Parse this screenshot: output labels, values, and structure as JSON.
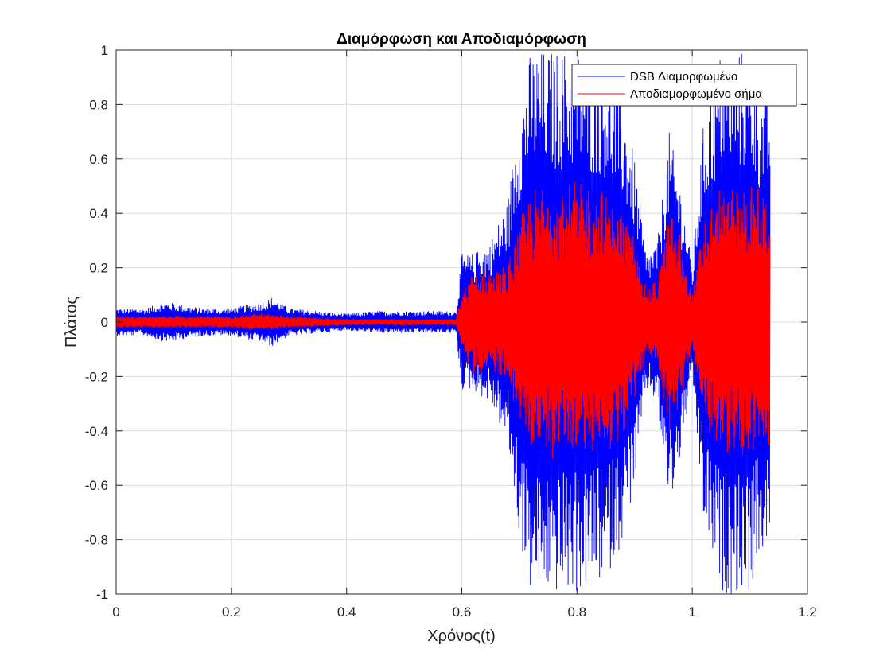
{
  "chart_data": {
    "type": "line",
    "title": "Διαμόρφωση και Αποδιαμόρφωση",
    "xlabel": "Χρόνος(t)",
    "ylabel": "Πλάτος",
    "xlim": [
      0,
      1.2
    ],
    "ylim": [
      -1,
      1
    ],
    "xticks": [
      0,
      0.2,
      0.4,
      0.6,
      0.8,
      1,
      1.2
    ],
    "yticks": [
      -1,
      -0.8,
      -0.6,
      -0.4,
      -0.2,
      0,
      0.2,
      0.4,
      0.6,
      0.8,
      1
    ],
    "xtick_labels": [
      "0",
      "0.2",
      "0.4",
      "0.6",
      "0.8",
      "1",
      "1.2"
    ],
    "ytick_labels": [
      "-1",
      "-0.8",
      "-0.6",
      "-0.4",
      "-0.2",
      "0",
      "0.2",
      "0.4",
      "0.6",
      "0.8",
      "1"
    ],
    "grid": true,
    "legend_position": "top-right",
    "x_end": 1.135,
    "series": [
      {
        "name": "DSB Διαμορφωμένο",
        "color": "#0000ff",
        "envelope": [
          [
            0,
            0.05
          ],
          [
            0.05,
            0.05
          ],
          [
            0.08,
            0.07
          ],
          [
            0.1,
            0.07
          ],
          [
            0.12,
            0.06
          ],
          [
            0.15,
            0.05
          ],
          [
            0.2,
            0.05
          ],
          [
            0.22,
            0.06
          ],
          [
            0.25,
            0.07
          ],
          [
            0.27,
            0.09
          ],
          [
            0.3,
            0.05
          ],
          [
            0.35,
            0.04
          ],
          [
            0.4,
            0.03
          ],
          [
            0.45,
            0.04
          ],
          [
            0.5,
            0.04
          ],
          [
            0.55,
            0.04
          ],
          [
            0.59,
            0.04
          ],
          [
            0.6,
            0.25
          ],
          [
            0.62,
            0.25
          ],
          [
            0.65,
            0.3
          ],
          [
            0.68,
            0.45
          ],
          [
            0.7,
            0.8
          ],
          [
            0.72,
            1.0
          ],
          [
            0.75,
            1.0
          ],
          [
            0.8,
            1.0
          ],
          [
            0.85,
            0.95
          ],
          [
            0.88,
            0.8
          ],
          [
            0.9,
            0.6
          ],
          [
            0.92,
            0.25
          ],
          [
            0.94,
            0.3
          ],
          [
            0.96,
            0.7
          ],
          [
            0.98,
            0.5
          ],
          [
            1.0,
            0.2
          ],
          [
            1.02,
            0.75
          ],
          [
            1.05,
            1.0
          ],
          [
            1.1,
            1.0
          ],
          [
            1.12,
            0.85
          ],
          [
            1.135,
            0.85
          ]
        ]
      },
      {
        "name": "Αποδιαμορφωμένο σήμα",
        "color": "#ff0000",
        "envelope": [
          [
            0,
            0.02
          ],
          [
            0.1,
            0.02
          ],
          [
            0.2,
            0.02
          ],
          [
            0.25,
            0.03
          ],
          [
            0.3,
            0.02
          ],
          [
            0.4,
            0.01
          ],
          [
            0.5,
            0.01
          ],
          [
            0.59,
            0.01
          ],
          [
            0.6,
            0.1
          ],
          [
            0.62,
            0.18
          ],
          [
            0.65,
            0.18
          ],
          [
            0.68,
            0.2
          ],
          [
            0.7,
            0.35
          ],
          [
            0.72,
            0.45
          ],
          [
            0.75,
            0.48
          ],
          [
            0.8,
            0.48
          ],
          [
            0.85,
            0.46
          ],
          [
            0.88,
            0.4
          ],
          [
            0.9,
            0.3
          ],
          [
            0.92,
            0.12
          ],
          [
            0.94,
            0.15
          ],
          [
            0.96,
            0.4
          ],
          [
            0.98,
            0.3
          ],
          [
            1.0,
            0.1
          ],
          [
            1.02,
            0.35
          ],
          [
            1.05,
            0.48
          ],
          [
            1.1,
            0.48
          ],
          [
            1.12,
            0.45
          ],
          [
            1.135,
            0.45
          ]
        ]
      }
    ]
  }
}
